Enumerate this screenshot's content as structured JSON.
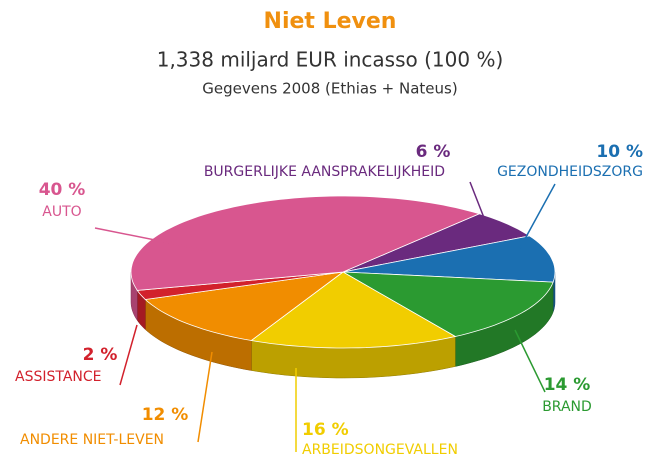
{
  "chart_data": {
    "type": "pie",
    "title": "Niet Leven",
    "subtitle": "1,338 miljard EUR incasso (100 %)",
    "note": "Gegevens 2008 (Ethias + Nateus)",
    "categories": [
      "BURGERLIJKE AANSPRAKELIJKHEID",
      "GEZONDHEIDSZORG",
      "BRAND",
      "ARBEIDSONGEVALLEN",
      "ANDERE NIET-LEVEN",
      "ASSISTANCE",
      "AUTO"
    ],
    "values": [
      6,
      10,
      14,
      16,
      12,
      2,
      40
    ],
    "value_labels": [
      "6 %",
      "10 %",
      "14 %",
      "16 %",
      "12 %",
      "2 %",
      "40 %"
    ],
    "colors": [
      "#6a2a7e",
      "#1b6fb1",
      "#2b9a31",
      "#f1cd00",
      "#f18d00",
      "#d2212c",
      "#d8568f"
    ]
  }
}
